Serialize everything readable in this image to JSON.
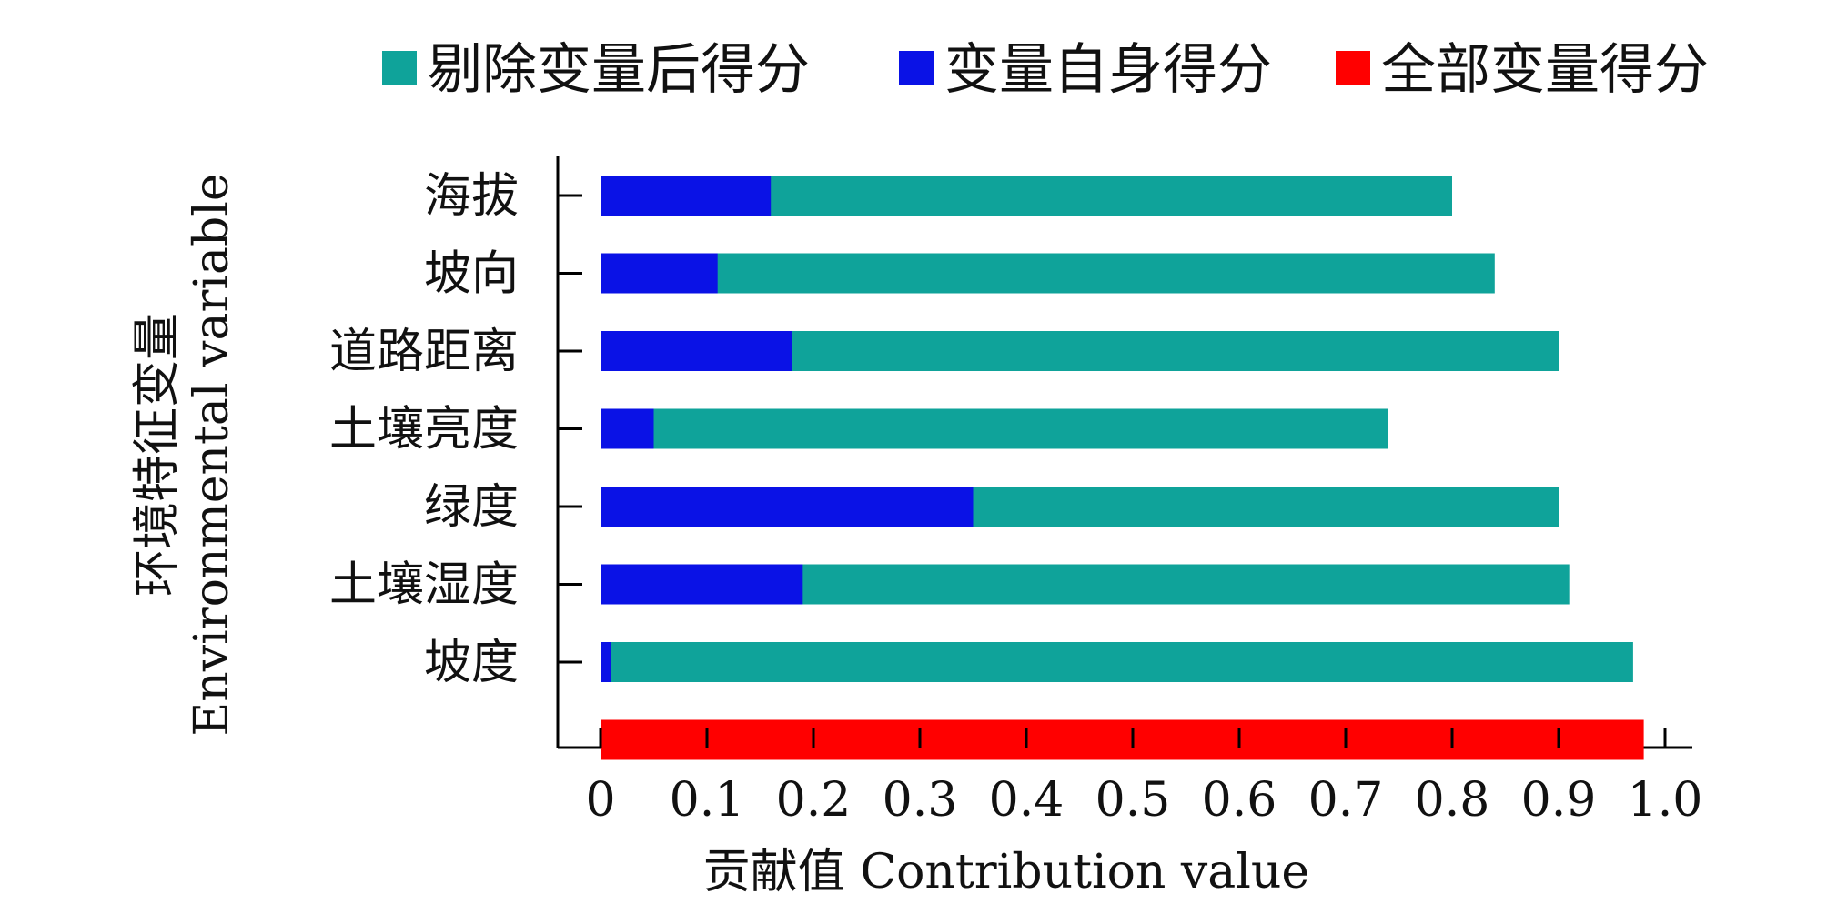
{
  "chart_data": {
    "type": "bar",
    "orientation": "horizontal",
    "stacked": "overlay",
    "categories": [
      "海拔",
      "坡向",
      "道路距离",
      "土壤亮度",
      "绿度",
      "土壤湿度",
      "坡度"
    ],
    "series": [
      {
        "name": "剔除变量后得分",
        "color": "#0fa39a",
        "values": [
          0.8,
          0.84,
          0.9,
          0.74,
          0.9,
          0.91,
          0.97
        ]
      },
      {
        "name": "变量自身得分",
        "color": "#0a12e6",
        "values": [
          0.16,
          0.11,
          0.18,
          0.05,
          0.35,
          0.19,
          0.01
        ]
      },
      {
        "name": "全部变量得分",
        "color": "#ff0000",
        "value": 0.98
      }
    ],
    "xlabel": "贡献值 Contribution value",
    "ylabel_lines": [
      "环境特征变量",
      "Environmental variable"
    ],
    "xlim": [
      0,
      1.0
    ],
    "xticks": [
      "0",
      "0.1",
      "0.2",
      "0.3",
      "0.4",
      "0.5",
      "0.6",
      "0.7",
      "0.8",
      "0.9",
      "1.0"
    ],
    "legend_position": "top",
    "grid": false
  }
}
